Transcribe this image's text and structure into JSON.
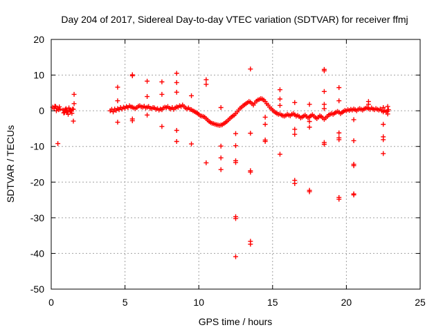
{
  "chart_data": {
    "type": "scatter",
    "title": "Day 204 of 2017, Sidereal Day-to-day VTEC variation (SDTVAR) for receiver ffmj",
    "xlabel": "GPS time / hours",
    "ylabel": "SDTVAR / TECUs",
    "xlim": [
      0,
      25
    ],
    "ylim": [
      -50,
      20
    ],
    "xticks": [
      0,
      5,
      10,
      15,
      20,
      25
    ],
    "yticks": [
      -50,
      -40,
      -30,
      -20,
      -10,
      0,
      10,
      20
    ],
    "grid": true,
    "legend": "none",
    "marker": "+",
    "series": [
      {
        "name": "SDTVAR",
        "color": "#ff0000",
        "points": [
          [
            0.1,
            1.0
          ],
          [
            0.2,
            0.6
          ],
          [
            0.3,
            1.2
          ],
          [
            0.4,
            0.8
          ],
          [
            0.5,
            0.3
          ],
          [
            0.55,
            1.1
          ],
          [
            0.6,
            0.5
          ],
          [
            0.45,
            -9.2
          ],
          [
            0.35,
            0.0
          ],
          [
            0.25,
            1.3
          ],
          [
            0.8,
            0.2
          ],
          [
            0.9,
            -0.5
          ],
          [
            1.0,
            0.6
          ],
          [
            1.1,
            -0.3
          ],
          [
            1.2,
            0.8
          ],
          [
            1.3,
            0.1
          ],
          [
            1.4,
            -0.7
          ],
          [
            1.5,
            0.4
          ],
          [
            0.95,
            0.3
          ],
          [
            1.15,
            -1.0
          ],
          [
            1.55,
            4.6
          ],
          [
            1.55,
            2.0
          ],
          [
            1.5,
            -2.9
          ],
          [
            1.25,
            0.2
          ],
          [
            1.45,
            0.5
          ],
          [
            1.05,
            -0.2
          ],
          [
            0.85,
            -0.6
          ],
          [
            1.35,
            0.0
          ],
          [
            4.0,
            0.0
          ],
          [
            4.1,
            0.4
          ],
          [
            4.2,
            -0.3
          ],
          [
            4.3,
            0.5
          ],
          [
            4.4,
            0.1
          ],
          [
            4.5,
            0.6
          ],
          [
            4.6,
            0.3
          ],
          [
            4.7,
            0.9
          ],
          [
            4.8,
            0.5
          ],
          [
            4.9,
            1.0
          ],
          [
            5.0,
            0.7
          ],
          [
            5.1,
            1.2
          ],
          [
            5.2,
            0.9
          ],
          [
            5.3,
            1.4
          ],
          [
            5.4,
            1.1
          ],
          [
            5.5,
            1.0
          ],
          [
            5.6,
            0.8
          ],
          [
            5.7,
            0.6
          ],
          [
            5.8,
            0.9
          ],
          [
            5.9,
            1.3
          ],
          [
            6.0,
            1.4
          ],
          [
            6.1,
            1.1
          ],
          [
            6.2,
            1.0
          ],
          [
            6.3,
            1.3
          ],
          [
            6.4,
            0.8
          ],
          [
            6.5,
            1.0
          ],
          [
            6.6,
            1.2
          ],
          [
            6.7,
            0.7
          ],
          [
            6.8,
            0.6
          ],
          [
            6.9,
            0.9
          ],
          [
            7.0,
            0.8
          ],
          [
            7.1,
            0.4
          ],
          [
            7.2,
            0.6
          ],
          [
            7.3,
            0.2
          ],
          [
            7.4,
            0.5
          ],
          [
            7.5,
            0.3
          ],
          [
            7.6,
            0.8
          ],
          [
            7.7,
            1.0
          ],
          [
            7.8,
            0.9
          ],
          [
            7.9,
            1.2
          ],
          [
            8.0,
            0.7
          ],
          [
            8.1,
            0.5
          ],
          [
            8.2,
            0.9
          ],
          [
            8.3,
            0.4
          ],
          [
            8.4,
            0.8
          ],
          [
            8.5,
            1.1
          ],
          [
            8.6,
            1.0
          ],
          [
            8.7,
            1.4
          ],
          [
            8.8,
            1.2
          ],
          [
            8.9,
            1.6
          ],
          [
            9.0,
            1.2
          ],
          [
            9.1,
            0.8
          ],
          [
            9.2,
            0.5
          ],
          [
            9.3,
            0.8
          ],
          [
            9.4,
            0.4
          ],
          [
            9.5,
            0.3
          ],
          [
            9.6,
            0.0
          ],
          [
            9.7,
            -0.2
          ],
          [
            9.8,
            -0.4
          ],
          [
            9.9,
            -0.7
          ],
          [
            10.0,
            -1.0
          ],
          [
            10.1,
            -1.4
          ],
          [
            10.2,
            -1.5
          ],
          [
            10.3,
            -1.6
          ],
          [
            10.4,
            -1.8
          ],
          [
            10.5,
            -2.2
          ],
          [
            10.6,
            -2.6
          ],
          [
            10.7,
            -3.0
          ],
          [
            10.8,
            -3.3
          ],
          [
            10.9,
            -3.5
          ],
          [
            11.0,
            -3.6
          ],
          [
            11.1,
            -3.8
          ],
          [
            11.2,
            -3.9
          ],
          [
            11.3,
            -4.0
          ],
          [
            11.4,
            -4.1
          ],
          [
            11.5,
            -4.0
          ],
          [
            11.6,
            -3.9
          ],
          [
            11.7,
            -3.6
          ],
          [
            11.8,
            -3.3
          ],
          [
            11.9,
            -3.0
          ],
          [
            12.0,
            -2.6
          ],
          [
            12.1,
            -2.2
          ],
          [
            12.2,
            -1.8
          ],
          [
            12.3,
            -1.5
          ],
          [
            12.4,
            -1.2
          ],
          [
            12.5,
            -0.8
          ],
          [
            12.6,
            -0.3
          ],
          [
            12.7,
            0.2
          ],
          [
            12.8,
            0.7
          ],
          [
            12.9,
            1.0
          ],
          [
            13.0,
            1.4
          ],
          [
            13.1,
            1.7
          ],
          [
            13.2,
            2.0
          ],
          [
            13.3,
            2.3
          ],
          [
            13.4,
            2.6
          ],
          [
            13.5,
            2.4
          ],
          [
            13.6,
            2.0
          ],
          [
            13.7,
            1.6
          ],
          [
            13.8,
            2.2
          ],
          [
            13.9,
            2.7
          ],
          [
            14.0,
            3.0
          ],
          [
            14.1,
            3.2
          ],
          [
            14.2,
            3.4
          ],
          [
            14.3,
            3.3
          ],
          [
            14.4,
            3.0
          ],
          [
            14.5,
            2.6
          ],
          [
            14.6,
            2.0
          ],
          [
            14.7,
            1.6
          ],
          [
            14.8,
            1.0
          ],
          [
            14.9,
            0.6
          ],
          [
            15.0,
            0.2
          ],
          [
            15.1,
            -0.2
          ],
          [
            15.2,
            -0.5
          ],
          [
            15.3,
            -0.8
          ],
          [
            15.4,
            -1.0
          ],
          [
            15.5,
            -0.9
          ],
          [
            15.6,
            -1.2
          ],
          [
            15.7,
            -1.4
          ],
          [
            15.8,
            -1.5
          ],
          [
            15.9,
            -1.3
          ],
          [
            16.0,
            -1.0
          ],
          [
            16.1,
            -1.2
          ],
          [
            16.2,
            -1.4
          ],
          [
            16.3,
            -1.0
          ],
          [
            16.4,
            -0.8
          ],
          [
            16.5,
            -1.1
          ],
          [
            16.6,
            -1.5
          ],
          [
            16.7,
            -1.3
          ],
          [
            16.8,
            -1.6
          ],
          [
            16.9,
            -2.0
          ],
          [
            17.0,
            -1.8
          ],
          [
            17.1,
            -1.5
          ],
          [
            17.2,
            -1.2
          ],
          [
            17.3,
            -1.6
          ],
          [
            17.4,
            -2.0
          ],
          [
            17.5,
            -1.7
          ],
          [
            17.6,
            -1.4
          ],
          [
            17.7,
            -1.1
          ],
          [
            17.8,
            -1.5
          ],
          [
            17.9,
            -1.9
          ],
          [
            18.0,
            -2.2
          ],
          [
            18.1,
            -1.8
          ],
          [
            18.2,
            -1.4
          ],
          [
            18.3,
            -1.6
          ],
          [
            18.4,
            -2.0
          ],
          [
            18.5,
            -2.4
          ],
          [
            18.6,
            -2.0
          ],
          [
            18.7,
            -1.6
          ],
          [
            18.8,
            -1.2
          ],
          [
            18.9,
            -1.0
          ],
          [
            19.0,
            -0.8
          ],
          [
            19.1,
            -1.0
          ],
          [
            19.2,
            -0.7
          ],
          [
            19.3,
            -0.4
          ],
          [
            19.4,
            -0.2
          ],
          [
            19.5,
            -0.4
          ],
          [
            19.6,
            -0.8
          ],
          [
            19.7,
            -0.5
          ],
          [
            19.8,
            -0.2
          ],
          [
            19.9,
            0.1
          ],
          [
            20.0,
            0.0
          ],
          [
            20.1,
            0.3
          ],
          [
            20.2,
            0.1
          ],
          [
            20.3,
            0.4
          ],
          [
            20.4,
            0.2
          ],
          [
            20.5,
            0.5
          ],
          [
            20.6,
            0.3
          ],
          [
            20.7,
            0.0
          ],
          [
            20.8,
            0.4
          ],
          [
            20.9,
            0.6
          ],
          [
            21.0,
            0.4
          ],
          [
            21.1,
            0.2
          ],
          [
            21.2,
            0.5
          ],
          [
            21.3,
            0.7
          ],
          [
            21.4,
            0.9
          ],
          [
            21.5,
            0.6
          ],
          [
            21.6,
            0.4
          ],
          [
            21.7,
            0.8
          ],
          [
            21.8,
            0.5
          ],
          [
            21.9,
            0.3
          ],
          [
            22.0,
            0.6
          ],
          [
            22.1,
            0.4
          ],
          [
            22.2,
            0.2
          ],
          [
            22.3,
            0.5
          ],
          [
            22.4,
            0.0
          ],
          [
            22.5,
            -0.3
          ],
          [
            22.6,
            0.1
          ],
          [
            22.7,
            -0.4
          ],
          [
            22.8,
            -0.1
          ],
          [
            22.85,
            0.3
          ],
          [
            4.5,
            6.6
          ],
          [
            4.5,
            2.8
          ],
          [
            4.5,
            -3.2
          ],
          [
            5.5,
            9.8
          ],
          [
            5.5,
            10.1
          ],
          [
            5.5,
            -2.3
          ],
          [
            5.5,
            -2.8
          ],
          [
            6.5,
            8.3
          ],
          [
            6.5,
            4.0
          ],
          [
            6.5,
            -1.2
          ],
          [
            7.5,
            8.1
          ],
          [
            7.5,
            4.6
          ],
          [
            7.5,
            -4.4
          ],
          [
            8.5,
            10.5
          ],
          [
            8.5,
            7.9
          ],
          [
            8.5,
            5.2
          ],
          [
            8.5,
            -5.5
          ],
          [
            8.5,
            -8.6
          ],
          [
            9.5,
            4.2
          ],
          [
            9.5,
            -9.3
          ],
          [
            10.5,
            8.7
          ],
          [
            10.5,
            7.4
          ],
          [
            10.5,
            -14.6
          ],
          [
            11.5,
            0.9
          ],
          [
            11.5,
            -9.9
          ],
          [
            11.5,
            -13.2
          ],
          [
            11.5,
            -16.5
          ],
          [
            12.5,
            -6.4
          ],
          [
            12.5,
            -9.8
          ],
          [
            12.5,
            -14.0
          ],
          [
            12.5,
            -14.5
          ],
          [
            12.5,
            -29.7
          ],
          [
            12.5,
            -30.2
          ],
          [
            12.5,
            -40.9
          ],
          [
            13.5,
            11.7
          ],
          [
            13.5,
            -6.3
          ],
          [
            13.5,
            -16.8
          ],
          [
            13.5,
            -17.2
          ],
          [
            13.5,
            -36.6
          ],
          [
            13.5,
            -37.4
          ],
          [
            14.5,
            -1.8
          ],
          [
            14.5,
            -3.8
          ],
          [
            14.5,
            -8.2
          ],
          [
            14.5,
            -8.6
          ],
          [
            15.5,
            5.9
          ],
          [
            15.5,
            3.3
          ],
          [
            15.5,
            1.5
          ],
          [
            15.5,
            -12.2
          ],
          [
            16.5,
            2.3
          ],
          [
            16.5,
            -5.2
          ],
          [
            16.5,
            -6.6
          ],
          [
            16.5,
            -19.5
          ],
          [
            16.5,
            -20.4
          ],
          [
            17.5,
            1.8
          ],
          [
            17.5,
            -3.0
          ],
          [
            17.5,
            -4.6
          ],
          [
            17.5,
            -22.3
          ],
          [
            17.5,
            -22.7
          ],
          [
            18.5,
            11.6
          ],
          [
            18.5,
            11.2
          ],
          [
            18.5,
            5.4
          ],
          [
            18.5,
            1.8
          ],
          [
            18.5,
            0.6
          ],
          [
            18.5,
            -8.9
          ],
          [
            18.5,
            -9.4
          ],
          [
            19.5,
            6.5
          ],
          [
            19.5,
            2.8
          ],
          [
            19.5,
            -6.2
          ],
          [
            19.5,
            -7.6
          ],
          [
            19.5,
            -8.1
          ],
          [
            19.5,
            -24.3
          ],
          [
            19.5,
            -24.8
          ],
          [
            20.5,
            -2.5
          ],
          [
            20.5,
            -8.4
          ],
          [
            20.5,
            -15.0
          ],
          [
            20.5,
            -15.4
          ],
          [
            20.5,
            -23.3
          ],
          [
            20.5,
            -23.6
          ],
          [
            21.5,
            2.6
          ],
          [
            21.5,
            1.8
          ],
          [
            22.5,
            -3.8
          ],
          [
            22.5,
            -7.3
          ],
          [
            22.5,
            -8.1
          ],
          [
            22.5,
            -12.0
          ],
          [
            22.5,
            0.9
          ],
          [
            22.8,
            1.2
          ],
          [
            22.8,
            -0.9
          ]
        ]
      }
    ]
  }
}
